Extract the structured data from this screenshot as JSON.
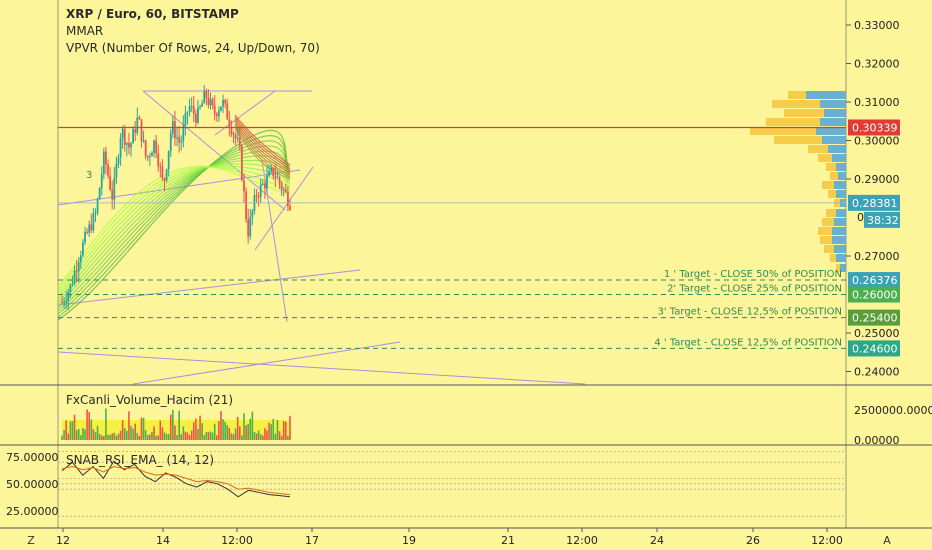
{
  "header": {
    "symbol": "XRP / Euro, 60, BITSTAMP",
    "indicator_1": "MMAR",
    "indicator_2": "VPVR (Number Of Rows, 24, Up/Down, 70)"
  },
  "colors": {
    "background": "#fdf59a",
    "up": "#26a69a",
    "down": "#ef5350",
    "resistance": "#e53935",
    "target": "#2e8b57",
    "current_price": "#3ba3b8",
    "trend": "#a98fe0"
  },
  "main_axis": {
    "ticks": [
      "0.33000",
      "0.32000",
      "0.31000",
      "0.30000",
      "0.29000",
      "0.27000",
      "0.25000",
      "0.24000"
    ],
    "ylim": [
      0.2365,
      0.3365
    ]
  },
  "price_badges": {
    "resistance": "0.30339",
    "current": "0.28381",
    "countdown": "38:32",
    "countdown_prefix": "0"
  },
  "targets": [
    {
      "label": "1 ' Target - CLOSE 50% of POSITION",
      "price": 0.26376,
      "badge": "0.26376",
      "badge_color": "#3ba3b8"
    },
    {
      "label": "2' Target - CLOSE 25% of POSITION",
      "price": 0.26,
      "badge": "0.26000",
      "badge_color": "#4caf50"
    },
    {
      "label": "3' Target - CLOSE 12,5% of POSITION",
      "price": 0.254,
      "badge": "0.25400",
      "badge_color": "#5a9e3a"
    },
    {
      "label": "4 ' Target - CLOSE 12,5% of POSITION",
      "price": 0.246,
      "badge": "0.24600",
      "badge_color": "#2aa889"
    }
  ],
  "wave_label": "3",
  "volume_panel": {
    "title": "FxCanli_Volume_Hacim (21)",
    "ticks": [
      "2500000.000000",
      "0.00000"
    ]
  },
  "rsi_panel": {
    "title": "SNAB_RSI_EMA_ (14, 12)",
    "ticks": [
      "75.00000",
      "50.00000",
      "25.00000"
    ]
  },
  "x_axis": {
    "ticks": [
      "12",
      "14",
      "12:00",
      "17",
      "19",
      "21",
      "12:00",
      "24",
      "26",
      "12:00"
    ],
    "left_button": "Z",
    "right_button": "A"
  },
  "chart_data": {
    "type": "candlestick",
    "title": "XRP / Euro, 60, BITSTAMP",
    "resistance_level": 0.30339,
    "current_price": 0.28381,
    "ohlc_path": [
      0.258,
      0.262,
      0.27,
      0.276,
      0.281,
      0.296,
      0.285,
      0.303,
      0.298,
      0.306,
      0.295,
      0.3,
      0.288,
      0.304,
      0.299,
      0.309,
      0.306,
      0.312,
      0.307,
      0.31,
      0.304,
      0.298,
      0.276,
      0.286,
      0.289,
      0.292,
      0.288,
      0.284
    ],
    "rsi_path": [
      62,
      70,
      58,
      66,
      55,
      71,
      63,
      68,
      57,
      52,
      60,
      56,
      50,
      47,
      52,
      50,
      45,
      38,
      44,
      42,
      40,
      39,
      38
    ],
    "rsi_ema_path": [
      64,
      66,
      63,
      65,
      61,
      66,
      64,
      65,
      61,
      58,
      59,
      58,
      55,
      52,
      53,
      52,
      50,
      45,
      46,
      44,
      42,
      41,
      40
    ]
  }
}
